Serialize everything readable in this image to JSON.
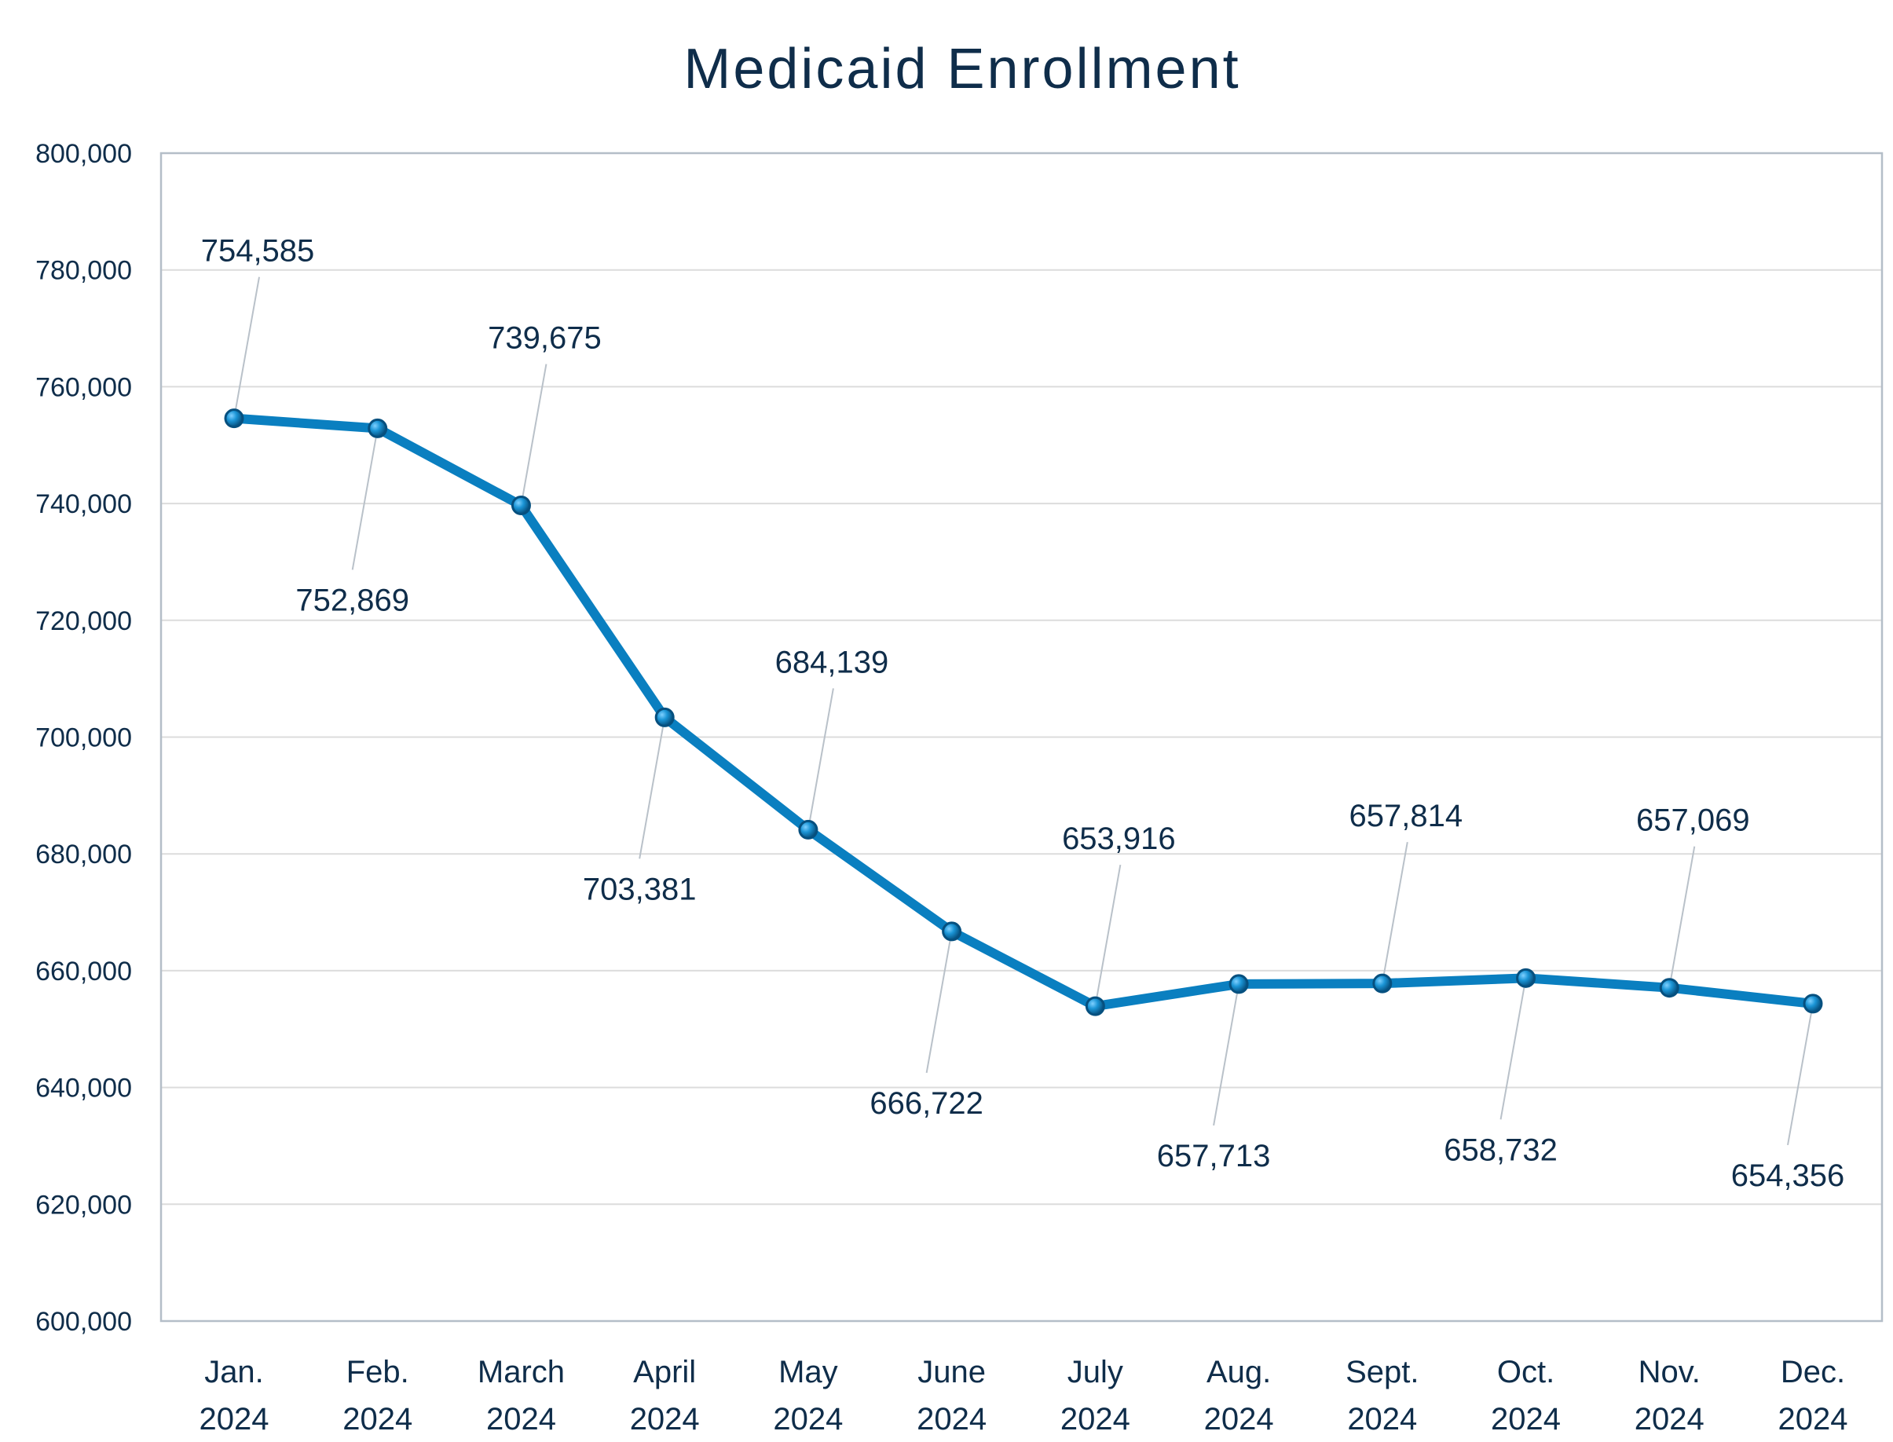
{
  "chart_data": {
    "type": "line",
    "title": "Medicaid Enrollment",
    "xlabel": "",
    "ylabel": "",
    "ylim": [
      600000,
      800000
    ],
    "y_ticks": [
      600000,
      620000,
      640000,
      660000,
      680000,
      700000,
      720000,
      740000,
      760000,
      780000,
      800000
    ],
    "y_tick_labels": [
      "600,000",
      "620,000",
      "640,000",
      "660,000",
      "680,000",
      "700,000",
      "720,000",
      "740,000",
      "760,000",
      "780,000",
      "800,000"
    ],
    "categories": [
      [
        "Jan.",
        "2024"
      ],
      [
        "Feb.",
        "2024"
      ],
      [
        "March",
        "2024"
      ],
      [
        "April",
        "2024"
      ],
      [
        "May",
        "2024"
      ],
      [
        "June",
        "2024"
      ],
      [
        "July",
        "2024"
      ],
      [
        "Aug.",
        "2024"
      ],
      [
        "Sept.",
        "2024"
      ],
      [
        "Oct.",
        "2024"
      ],
      [
        "Nov.",
        "2024"
      ],
      [
        "Dec.",
        "2024"
      ]
    ],
    "series": [
      {
        "values": [
          754585,
          752869,
          739675,
          703381,
          684139,
          666722,
          653916,
          657713,
          657814,
          658732,
          657069,
          654356
        ],
        "labels": [
          "754,585",
          "752,869",
          "739,675",
          "703,381",
          "684,139",
          "666,722",
          "653,916",
          "657,713",
          "657,814",
          "658,732",
          "657,069",
          "654,356"
        ],
        "label_positions": [
          "above",
          "below",
          "above",
          "below",
          "above",
          "below",
          "above",
          "below",
          "above",
          "below",
          "above",
          "below"
        ]
      }
    ],
    "grid": true,
    "legend": "none",
    "colors": {
      "line": "#0a7fc0",
      "marker": "#1b95d6",
      "text": "#0f2d4a",
      "grid": "#dcdcdc",
      "border": "#b4bec8",
      "leader": "#b9c1c9"
    }
  }
}
